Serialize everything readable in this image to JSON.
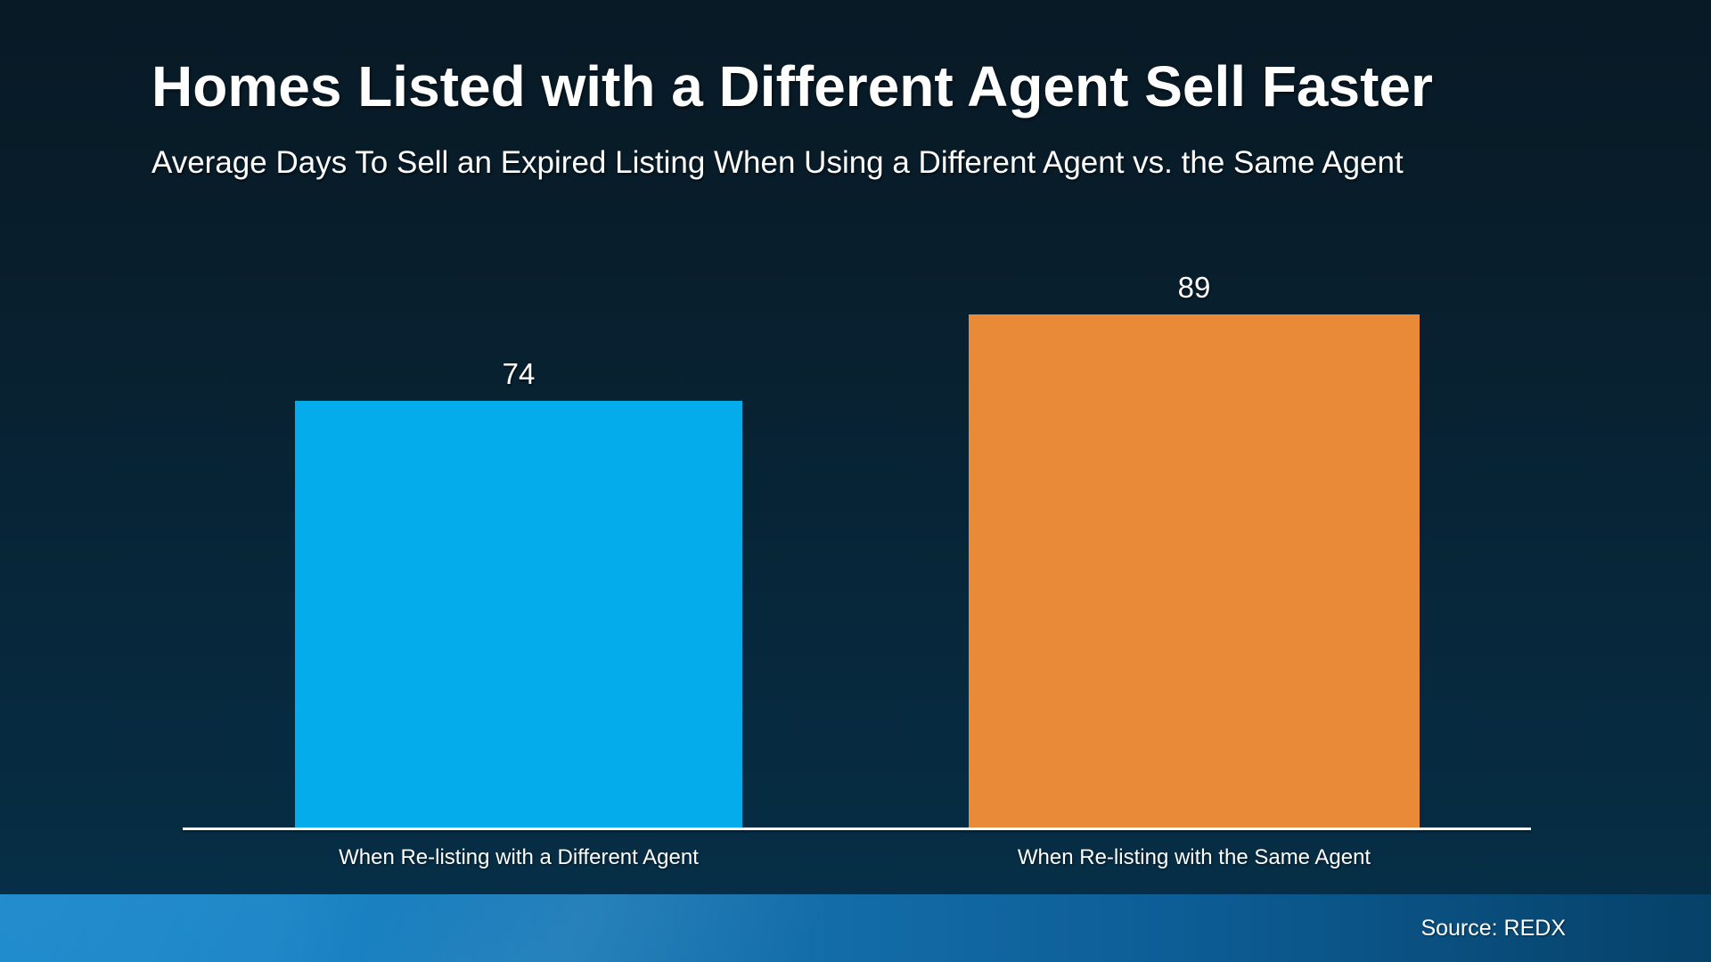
{
  "chart_data": {
    "type": "bar",
    "title": "Homes Listed with a Different Agent Sell Faster",
    "subtitle": "Average Days To Sell an Expired Listing When Using a Different Agent vs. the Same Agent",
    "categories": [
      "When Re-listing with a Different Agent",
      "When Re-listing with the Same Agent"
    ],
    "values": [
      74,
      89
    ],
    "value_labels": [
      "74",
      "89"
    ],
    "bar_colors": [
      "#05acec",
      "#e98a38"
    ],
    "ylim": [
      0,
      89
    ],
    "xlabel": "",
    "ylabel": "",
    "grid": false,
    "legend": "none",
    "source": "Source: REDX"
  },
  "theme": {
    "background_top": "#081a26",
    "background_bottom": "#063049",
    "text_color": "#ffffff",
    "axis_color": "#ffffff",
    "footer_left": "#0a80c8",
    "footer_right": "#064168"
  }
}
